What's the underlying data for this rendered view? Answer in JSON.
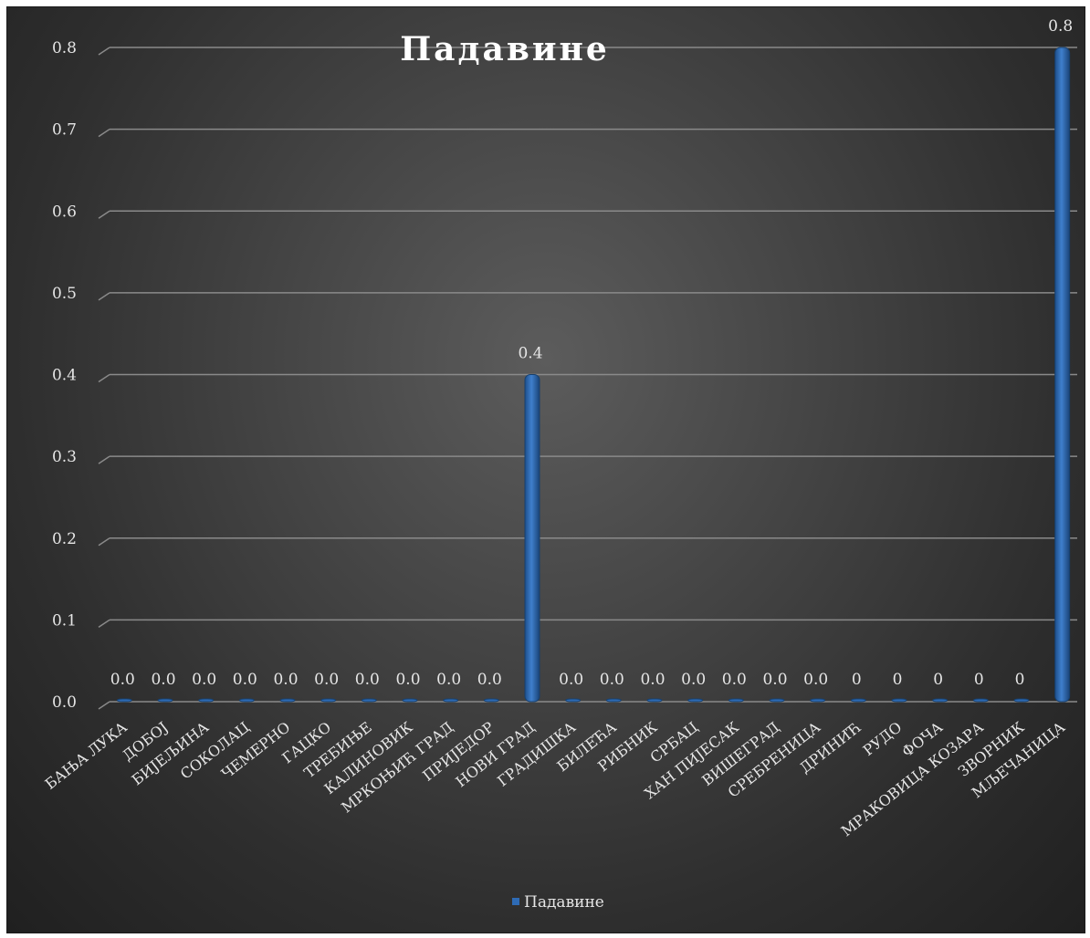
{
  "chart_data": {
    "type": "bar",
    "title": "Падавине",
    "categories": [
      "БАЊА ЛУКА",
      "ДОБОЈ",
      "БИЈЕЉИНА",
      "СОКОЛАЦ",
      "ЧЕМЕРНО",
      "ГАЦКО",
      "ТРЕБИЊЕ",
      "КАЛИНОВИК",
      "МРКОЊИЋ ГРАД",
      "ПРИЈЕДОР",
      "НОВИ ГРАД",
      "ГРАДИШКА",
      "БИЛЕЋА",
      "РИБНИК",
      "СРБАЦ",
      "ХАН ПИЈЕСАК",
      "ВИШЕГРАД",
      "СРЕБРЕНИЦА",
      "ДРИНИЋ",
      "РУДО",
      "ФОЧА",
      "МРАКОВИЦА КОЗАРА",
      "ЗВОРНИК",
      "МЉЕЧАНИЦА"
    ],
    "series": [
      {
        "name": "Падавине",
        "values": [
          0,
          0,
          0,
          0,
          0,
          0,
          0,
          0,
          0,
          0,
          0.4,
          0,
          0,
          0,
          0,
          0,
          0,
          0,
          0,
          0,
          0,
          0,
          0,
          0.8
        ],
        "data_labels": [
          "0.0",
          "0.0",
          "0.0",
          "0.0",
          "0.0",
          "0.0",
          "0.0",
          "0.0",
          "0.0",
          "0.0",
          "0.4",
          "0.0",
          "0.0",
          "0.0",
          "0.0",
          "0.0",
          "0.0",
          "0.0",
          "0",
          "0",
          "0",
          "0",
          "0",
          "0.8"
        ],
        "color": "#2e6bb5"
      }
    ],
    "ylim": [
      0,
      0.8
    ],
    "yticks": [
      "0.0",
      "0.1",
      "0.2",
      "0.3",
      "0.4",
      "0.5",
      "0.6",
      "0.7",
      "0.8"
    ],
    "xlabel": "",
    "ylabel": "",
    "grid": true,
    "legend": "bottom",
    "background": "#3a3a3a"
  }
}
